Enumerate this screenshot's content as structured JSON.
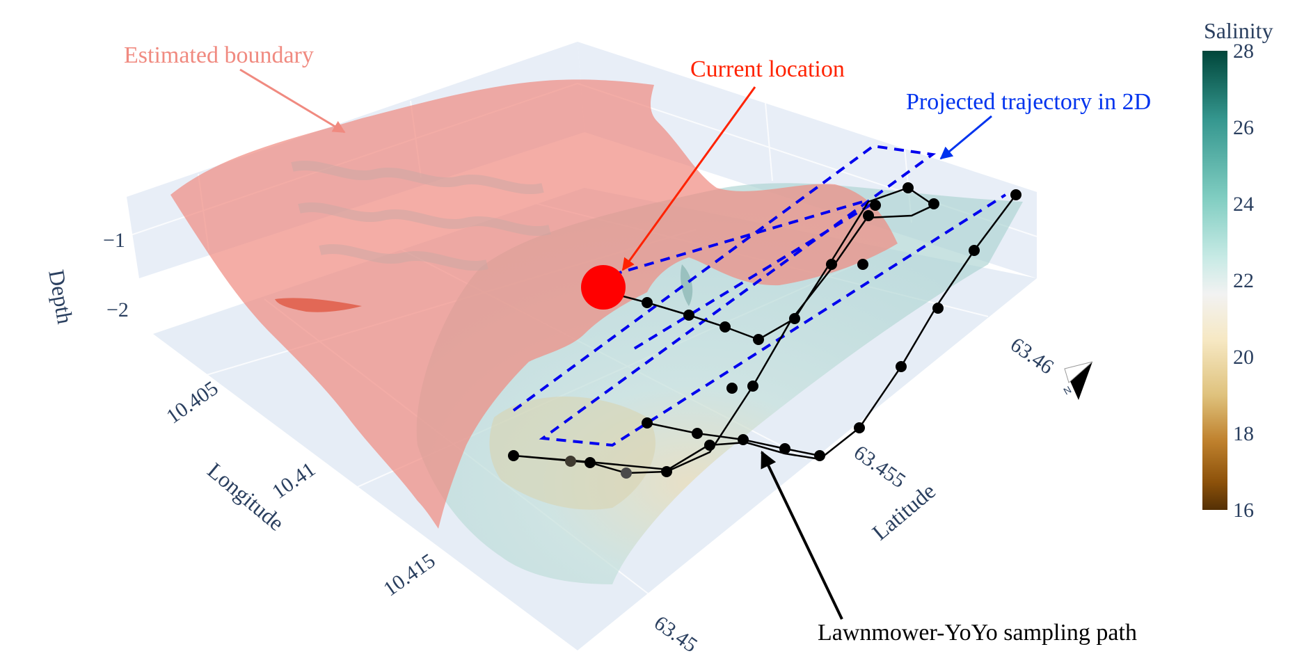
{
  "colors": {
    "boundary": "#f08a80",
    "current": "#ff0000",
    "projected": "#0000ee",
    "path": "#000000",
    "scene_bg": "#e5ecf6",
    "text": "#2a3f5f"
  },
  "annotations": {
    "estimated_boundary": "Estimated boundary",
    "current_location": "Current location",
    "projected_trajectory": "Projected trajectory in 2D",
    "sampling_path": "Lawnmower-YoYo sampling path"
  },
  "chart_data": {
    "type": "scatter3d",
    "axes": {
      "depth": {
        "title": "Depth",
        "ticks": [
          "−1",
          "−2"
        ]
      },
      "longitude": {
        "title": "Longitude",
        "ticks": [
          "10.405",
          "10.41",
          "10.415"
        ]
      },
      "latitude": {
        "title": "Latitude",
        "ticks": [
          "63.45",
          "63.455",
          "63.46"
        ]
      }
    },
    "colorbar": {
      "title": "Salinity",
      "range": [
        16,
        28
      ],
      "ticks": [
        "28",
        "26",
        "24",
        "22",
        "20",
        "18",
        "16"
      ],
      "colors": [
        "#00463a",
        "#35978f",
        "#80cdc1",
        "#c7eae5",
        "#f5f5f5",
        "#f6e8c3",
        "#dfc27d",
        "#bf812d",
        "#8c510a",
        "#543005"
      ]
    },
    "compass_label": "N",
    "series": [
      {
        "type": "isosurface",
        "color": "#f08a80"
      },
      {
        "type": "isosurface",
        "color": "#b6dcdc"
      },
      {
        "type": "markers+lines",
        "color": "#000000"
      },
      {
        "type": "line-dashed",
        "color": "#0000ee"
      },
      {
        "type": "marker",
        "color": "#ff0000"
      }
    ]
  }
}
